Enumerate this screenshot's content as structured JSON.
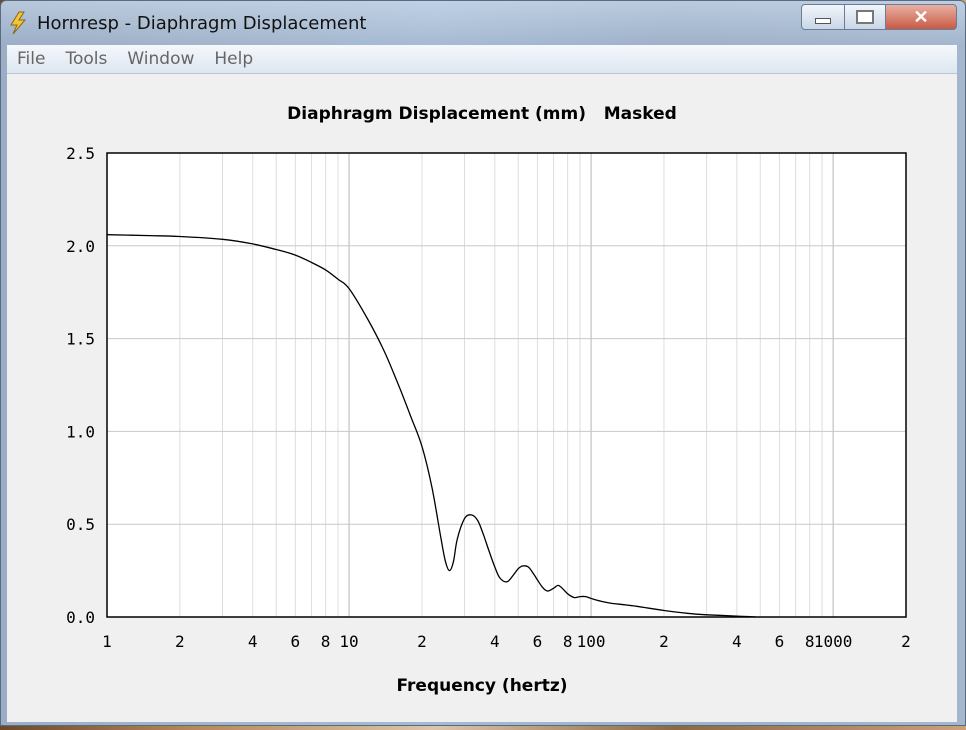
{
  "window": {
    "title": "Hornresp - Diaphragm Displacement",
    "close_glyph": "✕"
  },
  "menu": [
    "File",
    "Tools",
    "Window",
    "Help"
  ],
  "icons": {
    "app": "lightning-icon",
    "minimize": "minimize-icon",
    "maximize": "maximize-icon",
    "close": "close-icon"
  },
  "chart_data": {
    "type": "line",
    "title": "Diaphragm Displacement (mm)   Masked",
    "xlabel": "Frequency (hertz)",
    "ylabel": "",
    "xscale": "log",
    "xlim": [
      1,
      2000
    ],
    "ylim": [
      0,
      2.5
    ],
    "grid": true,
    "x_tick_labels": [
      {
        "v": 1,
        "t": "1"
      },
      {
        "v": 2,
        "t": "2"
      },
      {
        "v": 4,
        "t": "4"
      },
      {
        "v": 6,
        "t": "6"
      },
      {
        "v": 8,
        "t": "8"
      },
      {
        "v": 10,
        "t": "10"
      },
      {
        "v": 20,
        "t": "2"
      },
      {
        "v": 40,
        "t": "4"
      },
      {
        "v": 60,
        "t": "6"
      },
      {
        "v": 80,
        "t": "8"
      },
      {
        "v": 100,
        "t": "100"
      },
      {
        "v": 200,
        "t": "2"
      },
      {
        "v": 400,
        "t": "4"
      },
      {
        "v": 600,
        "t": "6"
      },
      {
        "v": 800,
        "t": "8"
      },
      {
        "v": 1000,
        "t": "1000"
      },
      {
        "v": 2000,
        "t": "2"
      }
    ],
    "y_tick_labels": [
      {
        "v": 0,
        "t": "0.0"
      },
      {
        "v": 0.5,
        "t": "0.5"
      },
      {
        "v": 1.0,
        "t": "1.0"
      },
      {
        "v": 1.5,
        "t": "1.5"
      },
      {
        "v": 2.0,
        "t": "2.0"
      },
      {
        "v": 2.5,
        "t": "2.5"
      }
    ],
    "series": [
      {
        "x": [
          1,
          1.5,
          2,
          3,
          4,
          5,
          6,
          7,
          8,
          9,
          10,
          12,
          14,
          16,
          18,
          20,
          22,
          24,
          25,
          26,
          27,
          28,
          30,
          32,
          34,
          36,
          38,
          40,
          42,
          45,
          48,
          50,
          52,
          55,
          58,
          60,
          63,
          66,
          70,
          73,
          76,
          80,
          85,
          90,
          95,
          100,
          110,
          120,
          150,
          200,
          250,
          300,
          400,
          480
        ],
        "y": [
          2.06,
          2.055,
          2.05,
          2.035,
          2.01,
          1.98,
          1.95,
          1.91,
          1.87,
          1.82,
          1.77,
          1.6,
          1.43,
          1.25,
          1.08,
          0.92,
          0.7,
          0.42,
          0.3,
          0.25,
          0.3,
          0.42,
          0.53,
          0.55,
          0.52,
          0.44,
          0.35,
          0.27,
          0.21,
          0.19,
          0.23,
          0.26,
          0.275,
          0.27,
          0.23,
          0.2,
          0.16,
          0.14,
          0.155,
          0.17,
          0.155,
          0.125,
          0.105,
          0.11,
          0.11,
          0.1,
          0.085,
          0.075,
          0.06,
          0.035,
          0.02,
          0.012,
          0.005,
          0.0
        ]
      }
    ]
  }
}
